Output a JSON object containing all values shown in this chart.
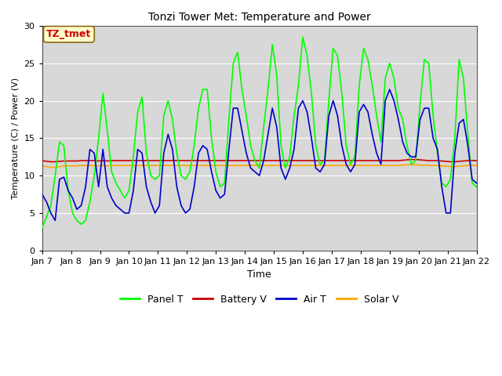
{
  "title": "Tonzi Tower Met: Temperature and Power",
  "xlabel": "Time",
  "ylabel": "Temperature (C) / Power (V)",
  "ylim": [
    0,
    30
  ],
  "x_tick_labels": [
    "Jan 7",
    "Jan 8",
    "Jan 9",
    "Jan 10",
    "Jan 11",
    "Jan 12",
    "Jan 13",
    "Jan 14",
    "Jan 15",
    "Jan 16",
    "Jan 17",
    "Jan 18",
    "Jan 19",
    "Jan 20",
    "Jan 21",
    "Jan 22"
  ],
  "fig_bg_color": "#ffffff",
  "plot_bg_color": "#d8d8d8",
  "annotation_text": "TZ_tmet",
  "annotation_bg": "#ffffcc",
  "annotation_border": "#8b6914",
  "legend_entries": [
    "Panel T",
    "Battery V",
    "Air T",
    "Solar V"
  ],
  "legend_colors": [
    "#00ff00",
    "#cc0000",
    "#0000cc",
    "#ffa500"
  ],
  "panel_t_color": "#00ff00",
  "battery_v_color": "#cc0000",
  "air_t_color": "#0000cc",
  "solar_v_color": "#ffa500",
  "panel_t_lw": 1.2,
  "battery_v_lw": 1.2,
  "air_t_lw": 1.2,
  "solar_v_lw": 1.2,
  "panel_t": [
    3.0,
    4.5,
    6.0,
    10.0,
    14.5,
    14.0,
    8.0,
    5.0,
    4.0,
    3.5,
    4.0,
    6.5,
    10.0,
    15.0,
    21.0,
    16.0,
    10.5,
    9.0,
    8.0,
    7.0,
    8.0,
    12.5,
    18.5,
    20.5,
    13.0,
    10.0,
    9.5,
    10.0,
    18.0,
    20.0,
    17.5,
    13.0,
    10.0,
    9.5,
    10.5,
    14.0,
    19.0,
    21.5,
    21.5,
    15.0,
    10.5,
    8.5,
    9.0,
    17.5,
    25.0,
    26.5,
    21.5,
    18.0,
    14.0,
    12.0,
    11.0,
    16.5,
    21.5,
    27.5,
    23.5,
    14.0,
    11.0,
    12.5,
    18.0,
    22.0,
    28.5,
    26.0,
    21.0,
    14.0,
    11.5,
    12.0,
    20.0,
    27.0,
    26.0,
    21.0,
    14.0,
    11.5,
    12.5,
    22.0,
    27.0,
    25.5,
    22.0,
    18.0,
    14.5,
    23.0,
    25.0,
    23.0,
    19.0,
    17.5,
    14.0,
    11.5,
    12.0,
    19.5,
    25.5,
    25.0,
    18.0,
    13.0,
    9.0,
    8.5,
    9.5,
    15.0,
    25.5,
    23.0,
    15.5,
    9.0,
    8.5
  ],
  "air_t": [
    7.5,
    6.5,
    5.0,
    4.0,
    9.5,
    9.8,
    8.0,
    7.0,
    5.5,
    6.0,
    8.5,
    13.5,
    13.0,
    8.5,
    13.5,
    8.5,
    7.0,
    6.0,
    5.5,
    5.0,
    5.0,
    8.0,
    13.5,
    13.0,
    8.5,
    6.5,
    5.0,
    6.0,
    13.0,
    15.5,
    13.5,
    8.5,
    6.0,
    5.0,
    5.5,
    8.5,
    13.0,
    14.0,
    13.5,
    10.5,
    8.0,
    7.0,
    7.5,
    13.5,
    19.0,
    19.0,
    16.0,
    13.0,
    11.0,
    10.5,
    10.0,
    12.0,
    15.5,
    19.0,
    16.5,
    11.0,
    9.5,
    11.0,
    13.5,
    19.0,
    20.0,
    18.5,
    15.0,
    11.0,
    10.5,
    11.5,
    18.0,
    20.0,
    18.0,
    14.0,
    11.5,
    10.5,
    11.5,
    18.5,
    19.5,
    18.5,
    15.5,
    13.0,
    11.5,
    20.0,
    21.5,
    20.0,
    17.5,
    14.5,
    13.0,
    12.5,
    12.5,
    17.5,
    19.0,
    19.0,
    15.0,
    13.5,
    8.5,
    5.0,
    5.0,
    13.0,
    17.0,
    17.5,
    14.0,
    9.5,
    9.0
  ],
  "battery_v": [
    12.0,
    11.9,
    11.85,
    11.85,
    11.9,
    11.95,
    11.95,
    11.95,
    11.95,
    12.0,
    12.0,
    12.0,
    12.0,
    11.95,
    12.0,
    11.95,
    12.0,
    12.0,
    12.0,
    12.0,
    12.0,
    12.0,
    12.0,
    12.0,
    12.0,
    12.0,
    12.0,
    12.0,
    12.0,
    12.0,
    12.0,
    12.0,
    12.0,
    12.0,
    12.0,
    12.0,
    12.0,
    12.0,
    12.0,
    12.0,
    12.0,
    12.0,
    12.0,
    12.0,
    12.0,
    12.0,
    12.0,
    12.0,
    12.0,
    12.0,
    12.0,
    12.0,
    12.0,
    12.0,
    12.0,
    12.0,
    12.0,
    12.0,
    12.0,
    12.0,
    12.0,
    12.0,
    12.0,
    12.0,
    12.0,
    12.0,
    12.0,
    12.0,
    12.0,
    12.0,
    12.0,
    12.0,
    12.0,
    12.0,
    12.0,
    12.0,
    12.0,
    12.0,
    12.0,
    12.0,
    12.0,
    12.0,
    12.0,
    12.05,
    12.1,
    12.15,
    12.15,
    12.1,
    12.05,
    12.0,
    12.0,
    12.0,
    11.95,
    11.9,
    11.85,
    11.85,
    11.9,
    11.95,
    12.0,
    12.0,
    12.0
  ],
  "solar_v": [
    11.3,
    11.2,
    11.1,
    11.1,
    11.2,
    11.3,
    11.3,
    11.3,
    11.3,
    11.35,
    11.35,
    11.35,
    11.35,
    11.3,
    11.35,
    11.3,
    11.35,
    11.35,
    11.35,
    11.35,
    11.35,
    11.35,
    11.35,
    11.35,
    11.35,
    11.35,
    11.35,
    11.35,
    11.35,
    11.35,
    11.35,
    11.35,
    11.35,
    11.35,
    11.35,
    11.35,
    11.35,
    11.35,
    11.35,
    11.35,
    11.35,
    11.35,
    11.35,
    11.35,
    11.35,
    11.35,
    11.35,
    11.35,
    11.35,
    11.35,
    11.35,
    11.35,
    11.35,
    11.35,
    11.35,
    11.35,
    11.35,
    11.35,
    11.35,
    11.35,
    11.35,
    11.35,
    11.35,
    11.35,
    11.35,
    11.35,
    11.35,
    11.35,
    11.35,
    11.35,
    11.35,
    11.35,
    11.35,
    11.35,
    11.35,
    11.35,
    11.35,
    11.35,
    11.35,
    11.35,
    11.35,
    11.35,
    11.35,
    11.4,
    11.45,
    11.45,
    11.45,
    11.4,
    11.4,
    11.35,
    11.35,
    11.35,
    11.3,
    11.25,
    11.2,
    11.2,
    11.25,
    11.3,
    11.35,
    11.35,
    11.35
  ]
}
